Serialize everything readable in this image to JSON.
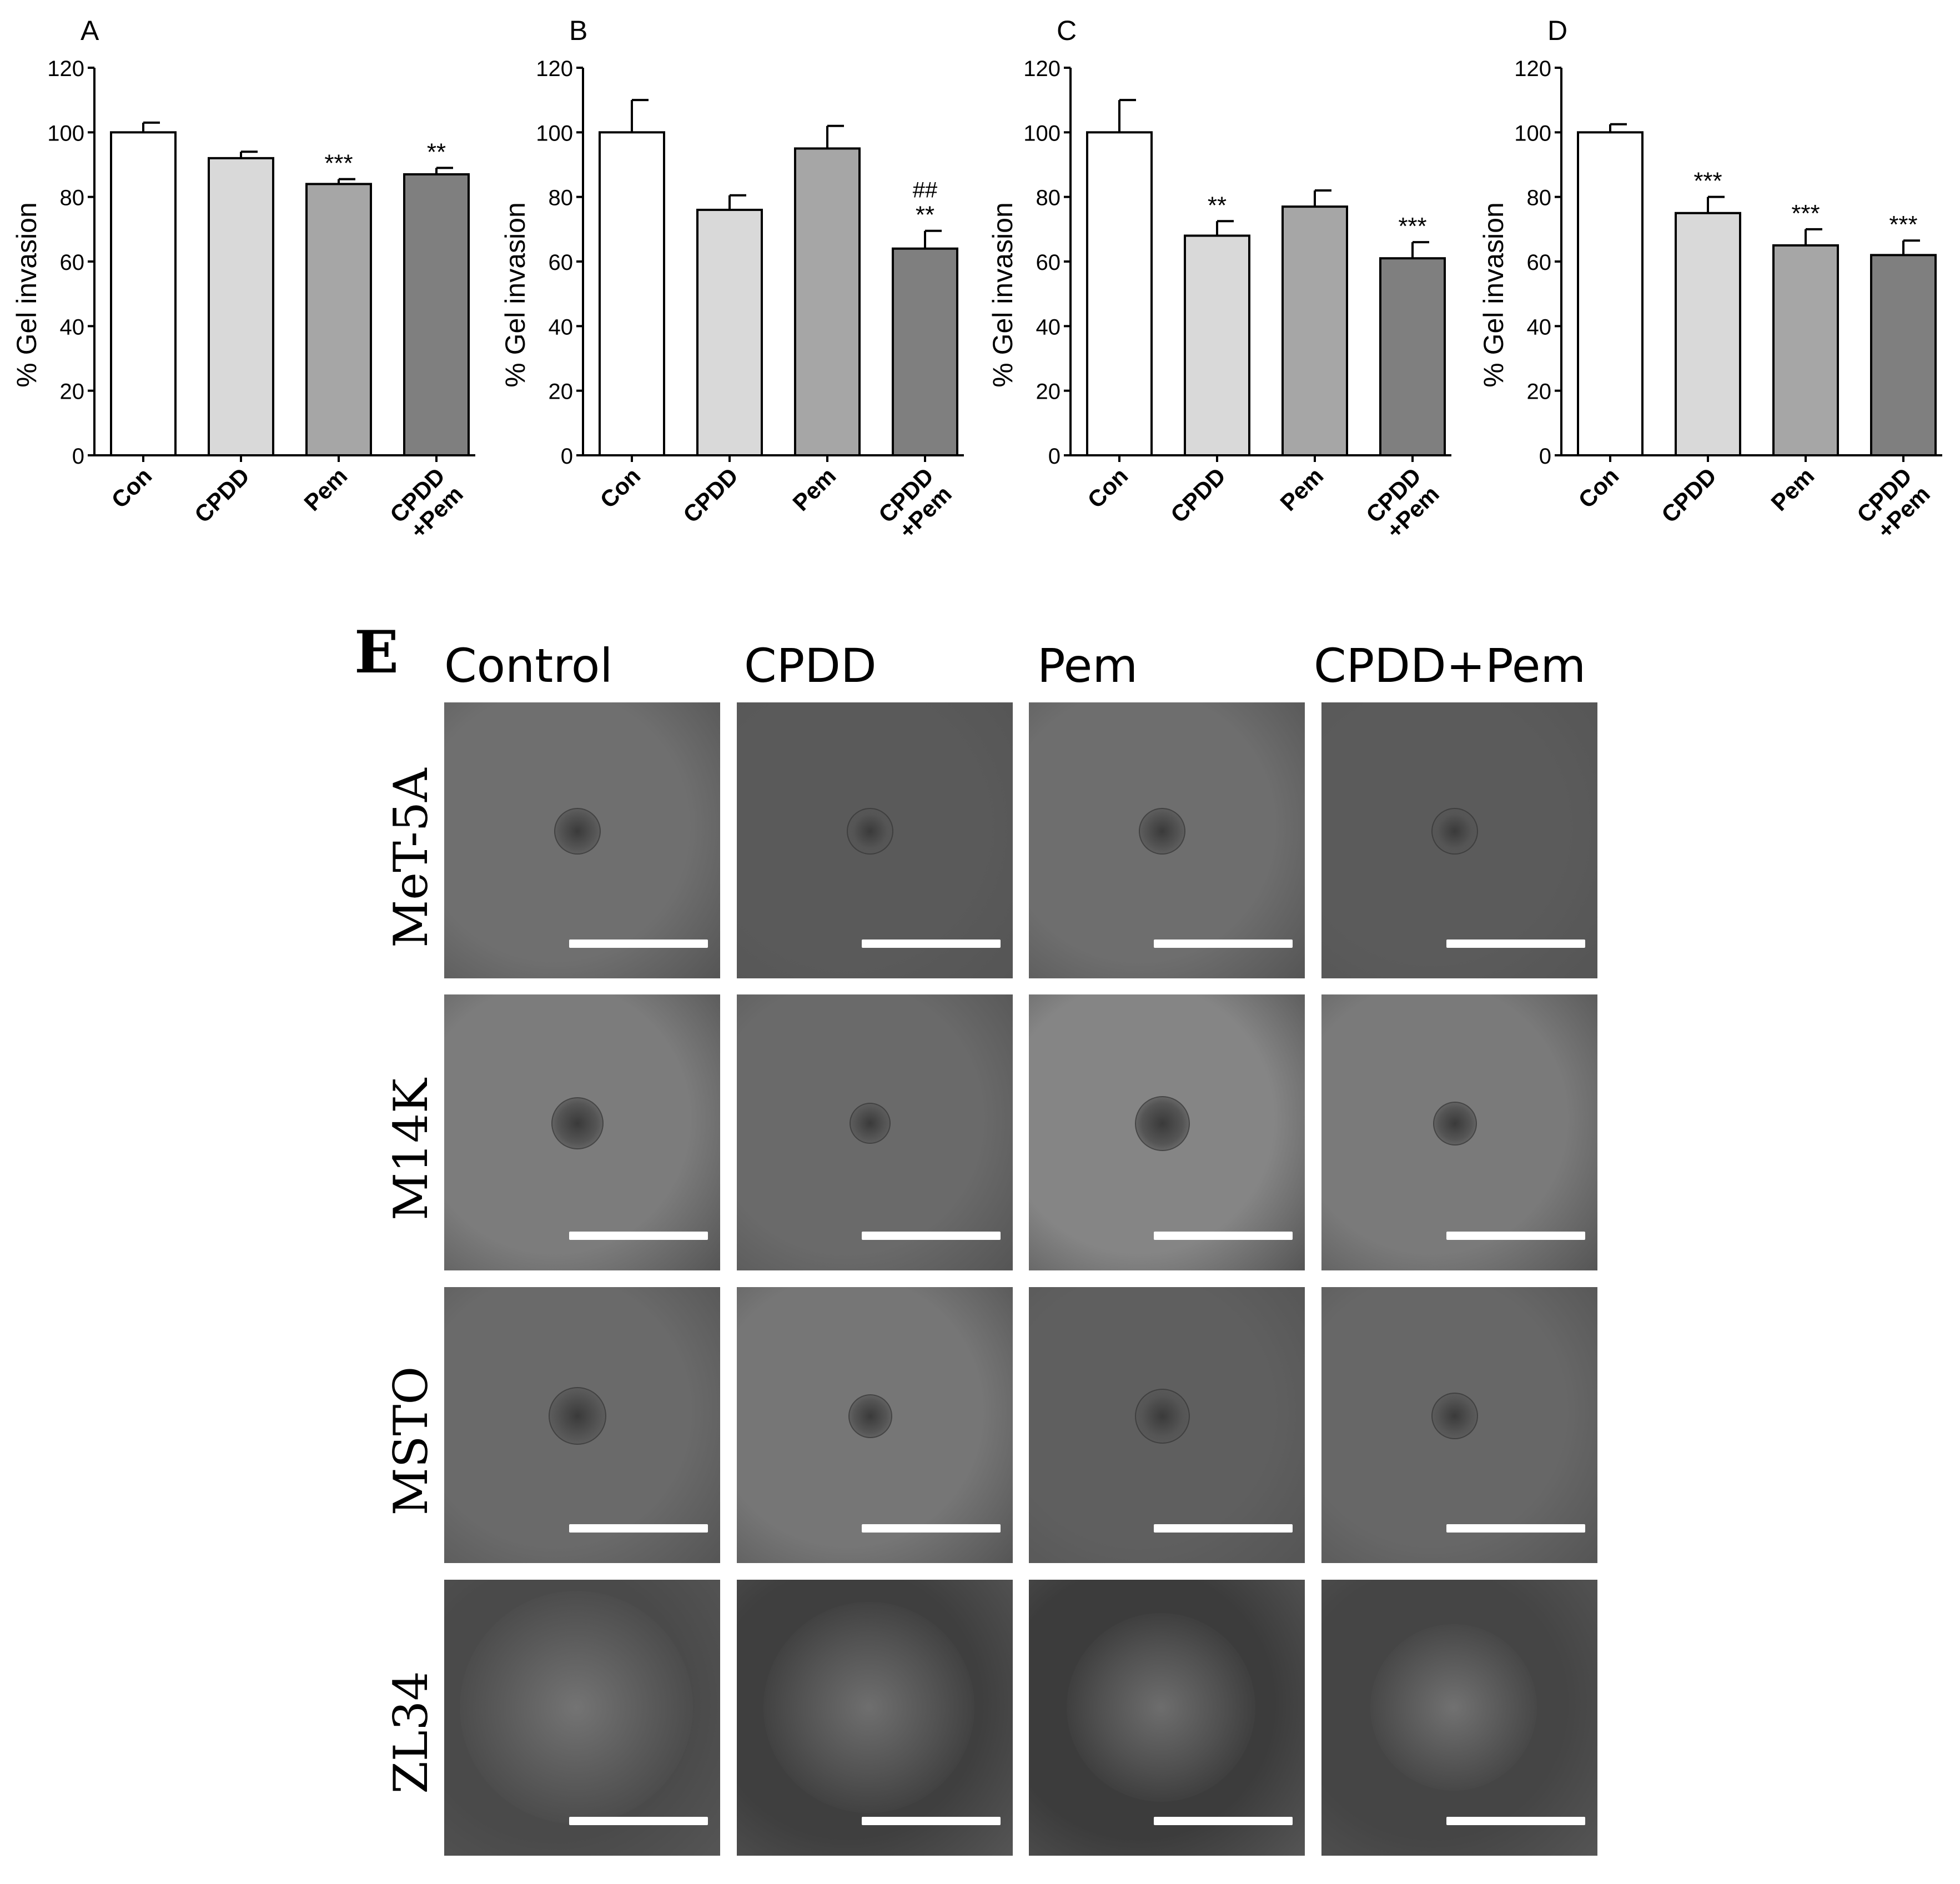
{
  "chart_data": [
    {
      "panel": "A",
      "type": "bar",
      "ylabel": "% Gel invasion",
      "ylim": [
        0,
        120
      ],
      "yticks": [
        0,
        20,
        40,
        60,
        80,
        100,
        120
      ],
      "categories": [
        "Con",
        "CPDD",
        "Pem",
        "CPDD\n+Pem"
      ],
      "values": [
        100,
        92,
        84,
        87
      ],
      "errors": [
        3,
        2,
        1.5,
        2
      ],
      "annotations": [
        "",
        "",
        "***",
        "**"
      ],
      "colors": [
        "#ffffff",
        "#d9d9d9",
        "#a6a6a6",
        "#7f7f7f"
      ]
    },
    {
      "panel": "B",
      "type": "bar",
      "ylabel": "% Gel invasion",
      "ylim": [
        0,
        120
      ],
      "yticks": [
        0,
        20,
        40,
        60,
        80,
        100,
        120
      ],
      "categories": [
        "Con",
        "CPDD",
        "Pem",
        "CPDD\n+Pem"
      ],
      "values": [
        100,
        76,
        95,
        64
      ],
      "errors": [
        10,
        4.5,
        7,
        5.5
      ],
      "annotations": [
        "",
        "",
        "",
        "##\n**"
      ],
      "colors": [
        "#ffffff",
        "#d9d9d9",
        "#a6a6a6",
        "#7f7f7f"
      ]
    },
    {
      "panel": "C",
      "type": "bar",
      "ylabel": "% Gel invasion",
      "ylim": [
        0,
        120
      ],
      "yticks": [
        0,
        20,
        40,
        60,
        80,
        100,
        120
      ],
      "categories": [
        "Con",
        "CPDD",
        "Pem",
        "CPDD\n+Pem"
      ],
      "values": [
        100,
        68,
        77,
        61
      ],
      "errors": [
        10,
        4.5,
        5,
        5
      ],
      "annotations": [
        "",
        "**",
        "",
        "***"
      ],
      "colors": [
        "#ffffff",
        "#d9d9d9",
        "#a6a6a6",
        "#7f7f7f"
      ]
    },
    {
      "panel": "D",
      "type": "bar",
      "ylabel": "% Gel invasion",
      "ylim": [
        0,
        120
      ],
      "yticks": [
        0,
        20,
        40,
        60,
        80,
        100,
        120
      ],
      "categories": [
        "Con",
        "CPDD",
        "Pem",
        "CPDD\n+Pem"
      ],
      "values": [
        100,
        75,
        65,
        62
      ],
      "errors": [
        2.5,
        5,
        5,
        4.5
      ],
      "annotations": [
        "",
        "***",
        "***",
        "***"
      ],
      "colors": [
        "#ffffff",
        "#d9d9d9",
        "#a6a6a6",
        "#7f7f7f"
      ]
    }
  ],
  "panel_e": {
    "letter": "E",
    "columns": [
      "Control",
      "CPDD",
      "Pem",
      "CPDD+Pem"
    ],
    "rows": [
      "MeT-5A",
      "M14K",
      "MSTO",
      "ZL34"
    ]
  }
}
